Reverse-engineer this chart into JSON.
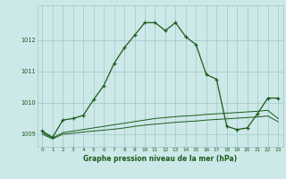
{
  "bg_color": "#cde8e8",
  "grid_color": "#9fc8c8",
  "line_color": "#1a5c1a",
  "title": "Graphe pression niveau de la mer (hPa)",
  "xlim": [
    -0.5,
    23.5
  ],
  "ylim": [
    1008.6,
    1013.1
  ],
  "yticks": [
    1009,
    1010,
    1011,
    1012
  ],
  "xticks": [
    0,
    1,
    2,
    3,
    4,
    5,
    6,
    7,
    8,
    9,
    10,
    11,
    12,
    13,
    14,
    15,
    16,
    17,
    18,
    19,
    20,
    21,
    22,
    23
  ],
  "line1_x": [
    0,
    1,
    2,
    3,
    4,
    5,
    6,
    7,
    8,
    9,
    10,
    11,
    12,
    13,
    14,
    15,
    16,
    17,
    18,
    19,
    20,
    21,
    22,
    23
  ],
  "line1_y": [
    1009.1,
    1008.9,
    1009.45,
    1009.5,
    1009.6,
    1010.1,
    1010.55,
    1011.25,
    1011.75,
    1012.15,
    1012.55,
    1012.55,
    1012.3,
    1012.55,
    1012.1,
    1011.85,
    1010.9,
    1010.75,
    1009.25,
    1009.15,
    1009.2,
    1009.65,
    1010.15,
    1010.15
  ],
  "line2_x": [
    0,
    1,
    2,
    3,
    4,
    5,
    6,
    7,
    8,
    9,
    10,
    11,
    12,
    13,
    14,
    15,
    16,
    17,
    18,
    19,
    20,
    21,
    22,
    23
  ],
  "line2_y": [
    1009.05,
    1008.88,
    1009.05,
    1009.1,
    1009.15,
    1009.2,
    1009.25,
    1009.3,
    1009.35,
    1009.4,
    1009.45,
    1009.5,
    1009.53,
    1009.56,
    1009.58,
    1009.6,
    1009.63,
    1009.65,
    1009.67,
    1009.69,
    1009.71,
    1009.73,
    1009.76,
    1009.5
  ],
  "line3_x": [
    0,
    1,
    2,
    3,
    4,
    5,
    6,
    7,
    8,
    9,
    10,
    11,
    12,
    13,
    14,
    15,
    16,
    17,
    18,
    19,
    20,
    21,
    22,
    23
  ],
  "line3_y": [
    1009.0,
    1008.85,
    1009.0,
    1009.03,
    1009.07,
    1009.1,
    1009.13,
    1009.16,
    1009.2,
    1009.25,
    1009.29,
    1009.32,
    1009.35,
    1009.38,
    1009.4,
    1009.42,
    1009.45,
    1009.47,
    1009.49,
    1009.51,
    1009.53,
    1009.55,
    1009.58,
    1009.4
  ]
}
